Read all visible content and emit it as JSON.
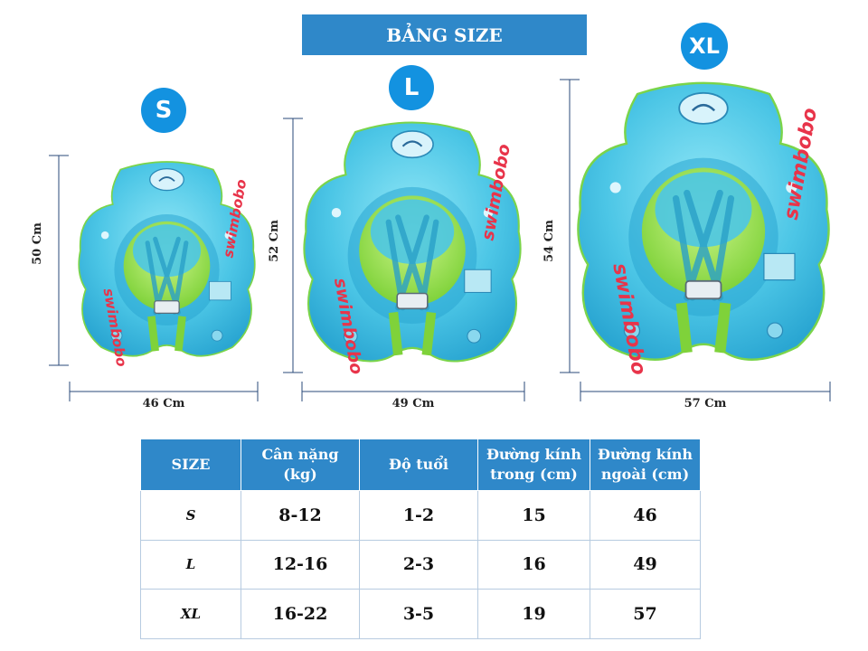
{
  "title": "BẢNG SIZE",
  "badges": {
    "s": "S",
    "l": "L",
    "xl": "XL"
  },
  "products": [
    {
      "size": "S",
      "height_label": "50 Cm",
      "width_label": "46 Cm",
      "brand_text": "swimbobo"
    },
    {
      "size": "L",
      "height_label": "52 Cm",
      "width_label": "49 Cm",
      "brand_text": "swimbobo"
    },
    {
      "size": "XL",
      "height_label": "54 Cm",
      "width_label": "57 Cm",
      "brand_text": "swimbobo"
    }
  ],
  "colors": {
    "banner": "#2f88c9",
    "badge": "#1392e0",
    "float_body": "#4cc6e6",
    "float_inner": "#8fe04a",
    "brand_red": "#e8344a"
  },
  "table": {
    "headers": [
      "SIZE",
      "Cân nặng (kg)",
      "Độ tuổi",
      "Đường kính trong (cm)",
      "Đường kính ngoài (cm)"
    ],
    "rows": [
      [
        "S",
        "8-12",
        "1-2",
        "15",
        "46"
      ],
      [
        "L",
        "12-16",
        "2-3",
        "16",
        "49"
      ],
      [
        "XL",
        "16-22",
        "3-5",
        "19",
        "57"
      ]
    ]
  }
}
